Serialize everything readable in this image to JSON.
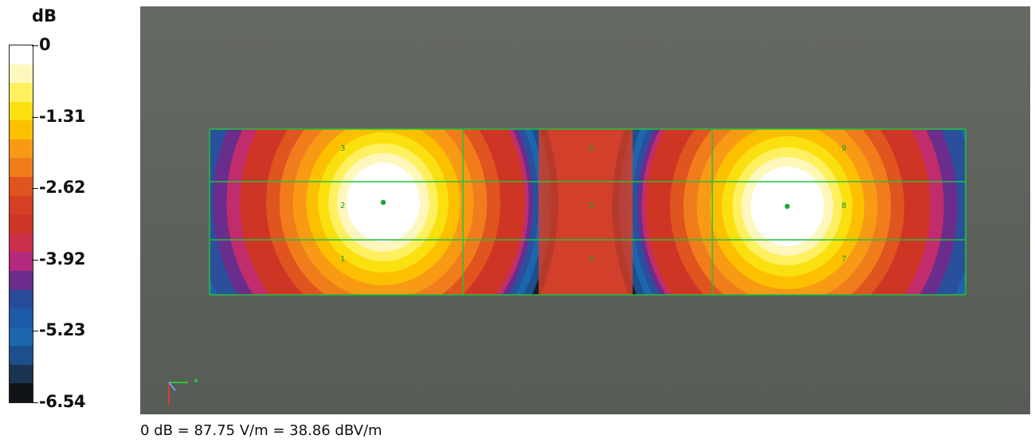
{
  "chart_data": {
    "type": "heatmap",
    "unit": "dB",
    "scale": {
      "max": 0,
      "min": -6.54,
      "tick_labels": [
        "0",
        "-1.31",
        "-2.62",
        "-3.92",
        "-5.23",
        "-6.54"
      ],
      "tick_values": [
        0,
        -1.31,
        -2.62,
        -3.92,
        -5.23,
        -6.54
      ],
      "band_colors": [
        "#ffffff",
        "#fff7bb",
        "#fff060",
        "#fbe010",
        "#fcc000",
        "#f89a14",
        "#f17c1c",
        "#e05420",
        "#d53f24",
        "#cf3525",
        "#cc2f4a",
        "#b42a7c",
        "#6a2d8c",
        "#284a9a",
        "#1d5aa8",
        "#1c66ae",
        "#1c4f8c",
        "#1a3350",
        "#101418"
      ]
    },
    "grid_labels": [
      "1",
      "2",
      "3",
      "4",
      "5",
      "6",
      "7",
      "8",
      "9"
    ],
    "hotspots_db": [
      0,
      0
    ],
    "caption": "0 dB = 87.75 V/m = 38.86 dBV/m"
  }
}
